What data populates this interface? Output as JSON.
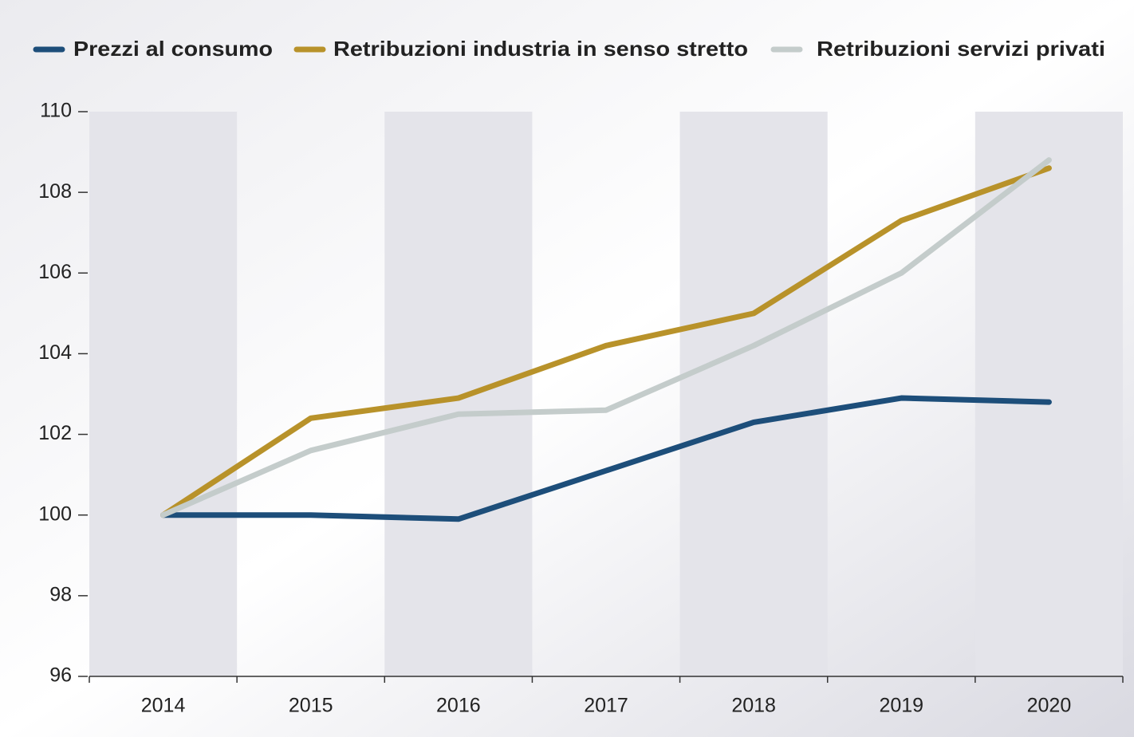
{
  "chart_data": {
    "type": "line",
    "categories": [
      "2014",
      "2015",
      "2016",
      "2017",
      "2018",
      "2019",
      "2020"
    ],
    "series": [
      {
        "name": "Prezzi al consumo",
        "color": "#1d4e7a",
        "values": [
          100,
          100,
          99.9,
          101.1,
          102.3,
          102.9,
          102.8
        ]
      },
      {
        "name": "Retribuzioni industria in senso stretto",
        "color": "#b8922a",
        "values": [
          100,
          102.4,
          102.9,
          104.2,
          105.0,
          107.3,
          108.6
        ]
      },
      {
        "name": "Retribuzioni servizi privati",
        "color": "#c4cccb",
        "values": [
          100,
          101.6,
          102.5,
          102.6,
          104.2,
          106.0,
          108.8
        ]
      }
    ],
    "ylim": [
      96,
      110
    ],
    "yticks": [
      96,
      98,
      100,
      102,
      104,
      106,
      108,
      110
    ]
  }
}
